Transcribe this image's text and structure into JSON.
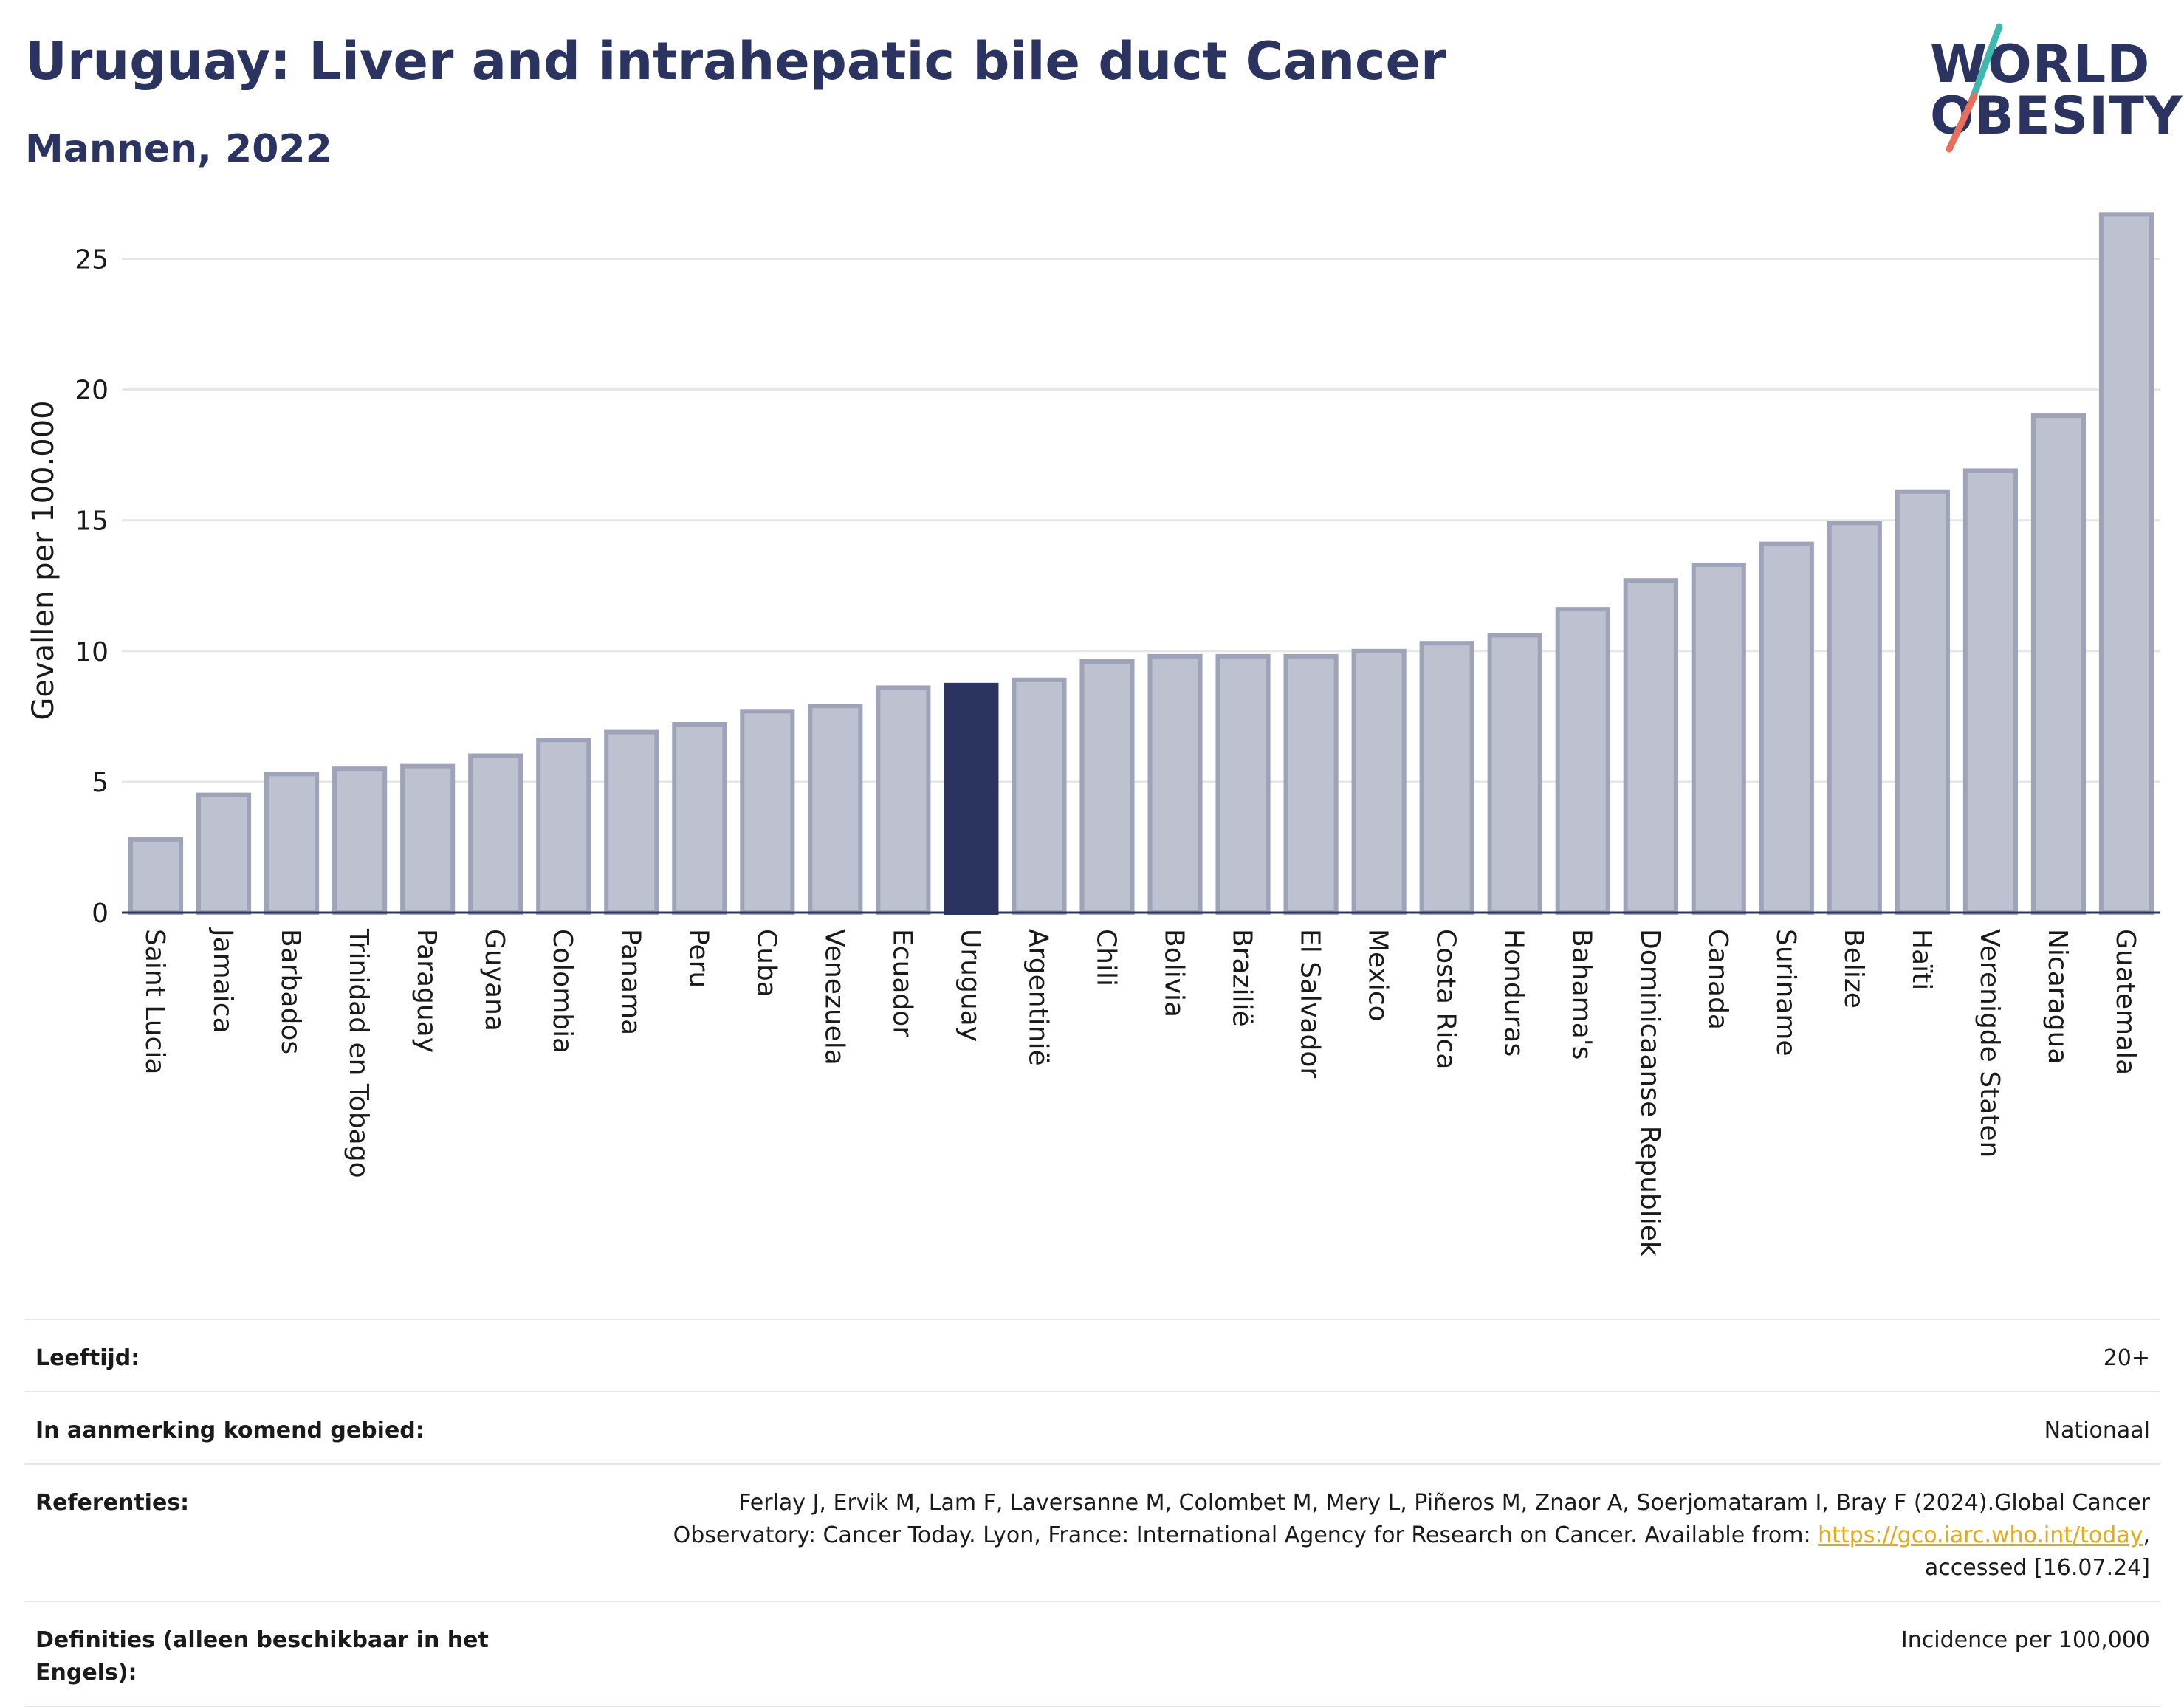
{
  "header": {
    "title": "Uruguay: Liver and intrahepatic bile duct Cancer",
    "subtitle": "Mannen, 2022"
  },
  "logo": {
    "line1": "WORLD",
    "line2": "OBESITY",
    "slash_colors": [
      "#3fb8b0",
      "#e8705a"
    ]
  },
  "colors": {
    "bar": "#bec1cf",
    "bar_border": "#9ea3b9",
    "highlight": "#2b3461",
    "grid": "#e6e6e6",
    "axis": "#2b3461"
  },
  "chart_data": {
    "type": "bar",
    "title": "Uruguay: Liver and intrahepatic bile duct Cancer",
    "subtitle": "Mannen, 2022",
    "ylabel": "Gevallen per 100.000",
    "xlabel": "",
    "ylim": [
      0,
      27.5
    ],
    "yticks": [
      0,
      5,
      10,
      15,
      20,
      25
    ],
    "grid": true,
    "highlight": "Uruguay",
    "categories": [
      "Saint Lucia",
      "Jamaica",
      "Barbados",
      "Trinidad en Tobago",
      "Paraguay",
      "Guyana",
      "Colombia",
      "Panama",
      "Peru",
      "Cuba",
      "Venezuela",
      "Ecuador",
      "Uruguay",
      "Argentinië",
      "Chili",
      "Bolivia",
      "Brazilië",
      "El Salvador",
      "Mexico",
      "Costa Rica",
      "Honduras",
      "Bahama's",
      "Dominicaanse Republiek",
      "Canada",
      "Suriname",
      "Belize",
      "Haïti",
      "Verenigde Staten",
      "Nicaragua",
      "Guatemala"
    ],
    "values": [
      2.8,
      4.5,
      5.3,
      5.5,
      5.6,
      6.0,
      6.6,
      6.9,
      7.2,
      7.7,
      7.9,
      8.6,
      8.7,
      8.9,
      9.6,
      9.8,
      9.8,
      9.8,
      10.0,
      10.3,
      10.6,
      11.6,
      12.7,
      13.3,
      14.1,
      14.9,
      16.1,
      16.9,
      19.0,
      26.7
    ]
  },
  "info": {
    "rows": [
      {
        "label": "Leeftijd:",
        "value": "20+"
      },
      {
        "label": "In aanmerking komend gebied:",
        "value": "Nationaal"
      },
      {
        "label": "Referenties:",
        "value_before": "Ferlay J, Ervik M, Lam F, Laversanne M, Colombet M, Mery L, Piñeros M, Znaor A, Soerjomataram I, Bray F (2024).Global Cancer Observatory: Cancer Today. Lyon, France: International Agency for Research on Cancer. Available from: ",
        "link": "https://gco.iarc.who.int/today",
        "value_after": ", accessed [16.07.24]"
      },
      {
        "label": "Definities (alleen beschikbaar in het Engels):",
        "value": "Incidence per 100,000"
      }
    ]
  }
}
